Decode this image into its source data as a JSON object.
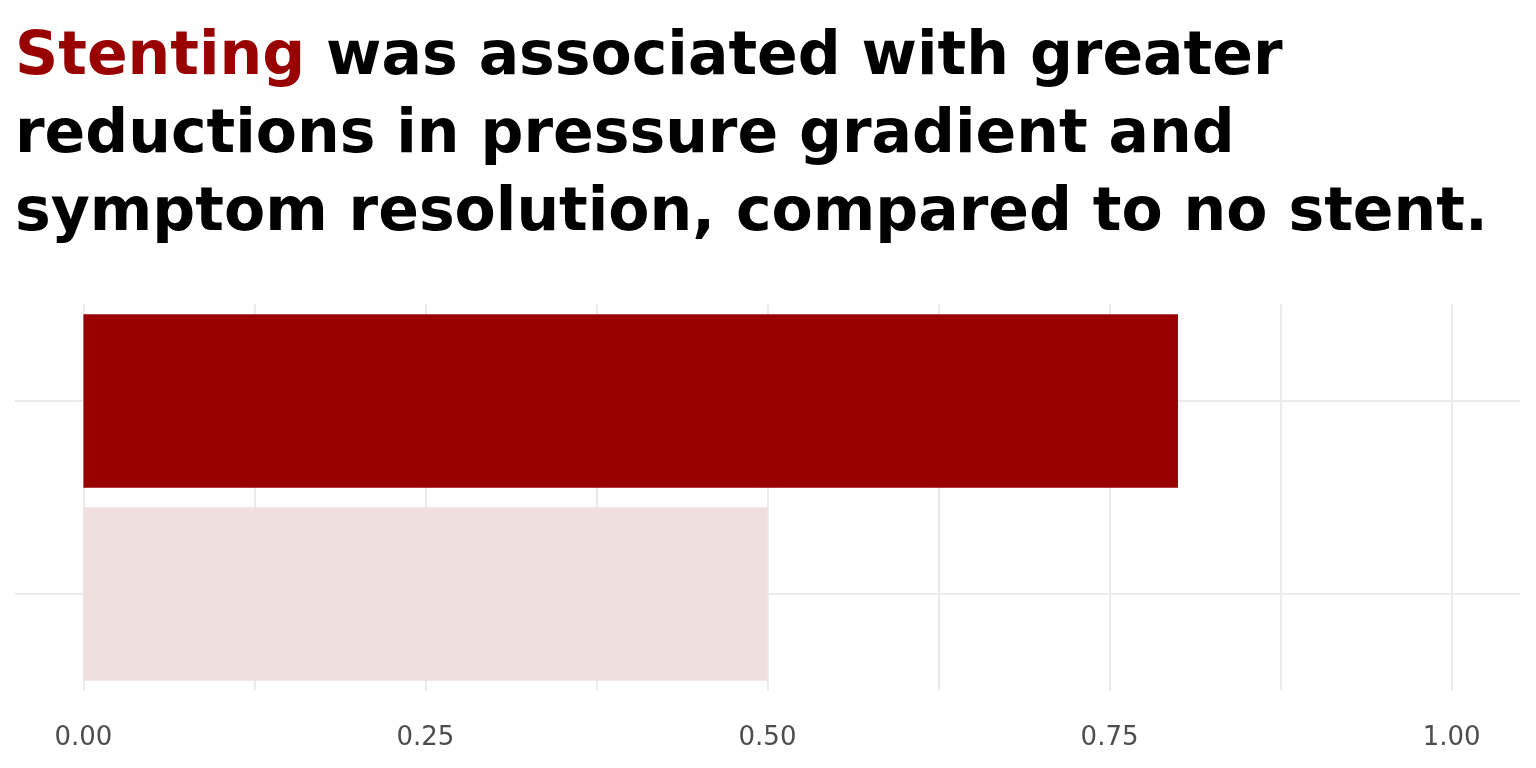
{
  "chart_data": {
    "type": "bar",
    "orientation": "horizontal",
    "title": "Stenting was associated with greater reductions in pressure gradient and symptom resolution, compared to no stent.",
    "categories": [
      null,
      null
    ],
    "values": [
      0.8,
      0.5
    ],
    "colors": [
      "#990000",
      "#f0dfdf"
    ],
    "xlim": [
      -0.05,
      1.05
    ],
    "xticks": [
      {
        "value": 0,
        "label": "0.00"
      },
      {
        "value": 0.125,
        "label": null
      },
      {
        "value": 0.25,
        "label": "0.25"
      },
      {
        "value": 0.375,
        "label": null
      },
      {
        "value": 0.5,
        "label": "0.50"
      },
      {
        "value": 0.625,
        "label": null
      },
      {
        "value": 0.75,
        "label": "0.75"
      },
      {
        "value": 0.875,
        "label": null
      },
      {
        "value": 1,
        "label": "1.00"
      }
    ],
    "grid": true,
    "tick_labels": "x"
  }
}
